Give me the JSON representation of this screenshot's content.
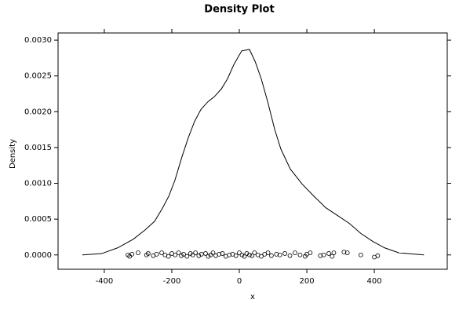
{
  "chart_data": {
    "type": "density",
    "title": "Density Plot",
    "x_label": "x",
    "y_label": "Density",
    "xlim": [
      -537,
      616
    ],
    "ylim": [
      -0.0002,
      0.0031
    ],
    "xticks": [
      -400,
      -200,
      0,
      200,
      400
    ],
    "yticks": [
      {
        "value": 0,
        "label": "0.0000"
      },
      {
        "value": 0.0005,
        "label": "0.0005"
      },
      {
        "value": 0.001,
        "label": "0.0010"
      },
      {
        "value": 0.0015,
        "label": "0.0015"
      },
      {
        "value": 0.002,
        "label": "0.0020"
      },
      {
        "value": 0.0025,
        "label": "0.0025"
      },
      {
        "value": 0.003,
        "label": "0.0030"
      }
    ],
    "color": "#000000",
    "density": {
      "x": [
        -465,
        -407,
        -360,
        -314,
        -279,
        -251,
        -228,
        -209,
        -191,
        -170,
        -151,
        -133,
        -114,
        -93,
        -74,
        -53,
        -35,
        -16,
        7,
        30,
        47,
        65,
        84,
        105,
        123,
        151,
        186,
        221,
        256,
        291,
        326,
        360,
        395,
        430,
        472,
        547
      ],
      "y": [
        0,
        2e-05,
        0.0001,
        0.00022,
        0.00035,
        0.00047,
        0.00065,
        0.00082,
        0.00104,
        0.00137,
        0.00164,
        0.00186,
        0.00203,
        0.00214,
        0.00221,
        0.00232,
        0.00246,
        0.00266,
        0.00285,
        0.00287,
        0.0027,
        0.00246,
        0.00214,
        0.00175,
        0.00148,
        0.0012,
        0.00099,
        0.00082,
        0.00066,
        0.00055,
        0.00044,
        0.0003,
        0.00019,
        0.0001,
        3e-05,
        0
      ]
    },
    "points": {
      "x": [
        -330,
        -325,
        -318,
        -300,
        -275,
        -270,
        -255,
        -245,
        -230,
        -220,
        -210,
        -200,
        -190,
        -180,
        -172,
        -165,
        -155,
        -145,
        -138,
        -130,
        -120,
        -112,
        -100,
        -92,
        -85,
        -78,
        -70,
        -60,
        -50,
        -40,
        -30,
        -20,
        -10,
        0,
        8,
        15,
        22,
        30,
        38,
        45,
        55,
        65,
        75,
        85,
        95,
        110,
        120,
        135,
        150,
        165,
        180,
        195,
        200,
        210,
        240,
        250,
        265,
        275,
        280,
        310,
        320,
        360,
        400,
        410
      ],
      "y": [
        0,
        -2e-05,
        1e-05,
        3e-05,
        0,
        2e-05,
        -1e-05,
        1e-05,
        3e-05,
        0,
        -2e-05,
        2e-05,
        0,
        3e-05,
        -1e-05,
        1e-05,
        -2e-05,
        2e-05,
        0,
        3e-05,
        -1e-05,
        1e-05,
        2e-05,
        -2e-05,
        0,
        3e-05,
        -1e-05,
        1e-05,
        2e-05,
        -2e-05,
        0,
        1e-05,
        -1e-05,
        3e-05,
        0,
        -2e-05,
        2e-05,
        0,
        -1e-05,
        3e-05,
        0,
        -2e-05,
        1e-05,
        3e-05,
        -1e-05,
        1e-05,
        0,
        2e-05,
        -1e-05,
        3e-05,
        0,
        -2e-05,
        1e-05,
        3e-05,
        -1e-05,
        0,
        2e-05,
        -2e-05,
        3e-05,
        4e-05,
        3e-05,
        0,
        -3e-05,
        -1e-05
      ]
    }
  }
}
